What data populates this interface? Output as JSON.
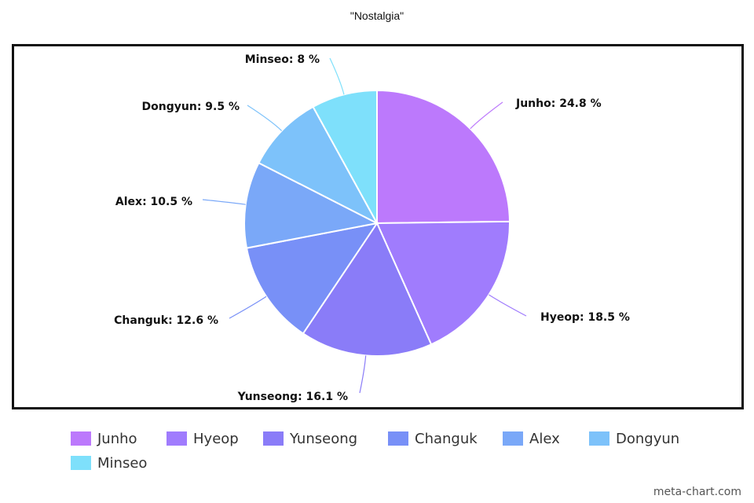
{
  "chart_data": {
    "type": "pie",
    "title": "\"Nostalgia\"",
    "categories": [
      "Junho",
      "Hyeop",
      "Yunseong",
      "Changuk",
      "Alex",
      "Dongyun",
      "Minseo"
    ],
    "values": [
      24.8,
      18.5,
      16.1,
      12.6,
      10.5,
      9.5,
      8
    ],
    "value_suffix": " %",
    "colors": [
      "#bc79fc",
      "#a07cfd",
      "#8a7cf8",
      "#7890f7",
      "#7aa8f8",
      "#7dc2fa",
      "#7ee0fb"
    ],
    "legend": {
      "position": "bottom",
      "items": [
        "Junho",
        "Hyeop",
        "Yunseong",
        "Changuk",
        "Alex",
        "Dongyun",
        "Minseo"
      ]
    }
  },
  "labels": [
    "Junho: 24.8 %",
    "Hyeop: 18.5 %",
    "Yunseong: 16.1 %",
    "Changuk: 12.6 %",
    "Alex: 10.5 %",
    "Dongyun: 9.5 %",
    "Minseo: 8 %"
  ],
  "watermark": "meta-chart.com"
}
